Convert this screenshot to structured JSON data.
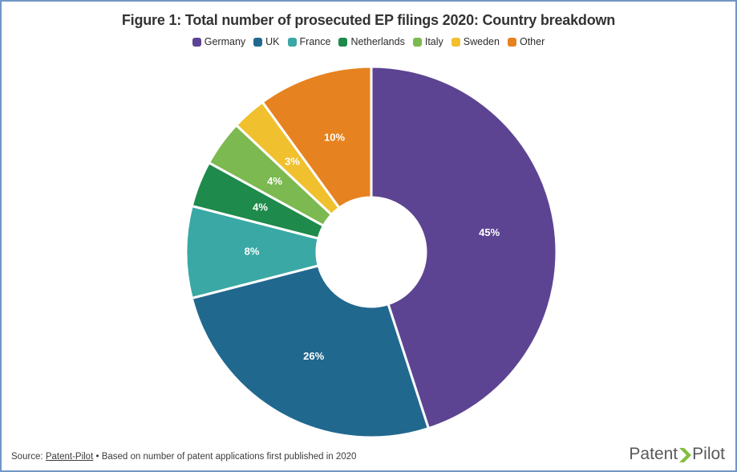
{
  "frame": {
    "border_color": "#7195C7",
    "background": "#FFFFFF"
  },
  "title": "Figure 1: Total number of prosecuted EP filings 2020: Country breakdown",
  "chart_data": {
    "type": "pie",
    "subtype": "donut",
    "title": "Figure 1: Total number of prosecuted EP filings 2020: Country breakdown",
    "legend_position": "top",
    "start_angle_deg": 0,
    "direction": "clockwise",
    "inner_radius_ratio": 0.29,
    "categories": [
      "Germany",
      "UK",
      "France",
      "Netherlands",
      "Italy",
      "Sweden",
      "Other"
    ],
    "values": [
      45,
      26,
      8,
      4,
      4,
      3,
      10
    ],
    "labels": [
      "45%",
      "26%",
      "8%",
      "4%",
      "4%",
      "3%",
      "10%"
    ],
    "colors": [
      "#5D4492",
      "#21688F",
      "#3AA8A4",
      "#1E8A4B",
      "#7CB951",
      "#F0C02E",
      "#E6821F"
    ],
    "label_color": "#FFFFFF",
    "slice_border_color": "#FFFFFF"
  },
  "footer": {
    "source_prefix": "Source: ",
    "source_link": "Patent-Pilot",
    "source_suffix": " • Based on number of patent applications first published in 2020"
  },
  "logo": {
    "part1": "Patent",
    "part2": "Pilot",
    "chevron_icon": "right-chevron",
    "chevron_color": "#84BD3F",
    "text_color": "#58595B"
  }
}
